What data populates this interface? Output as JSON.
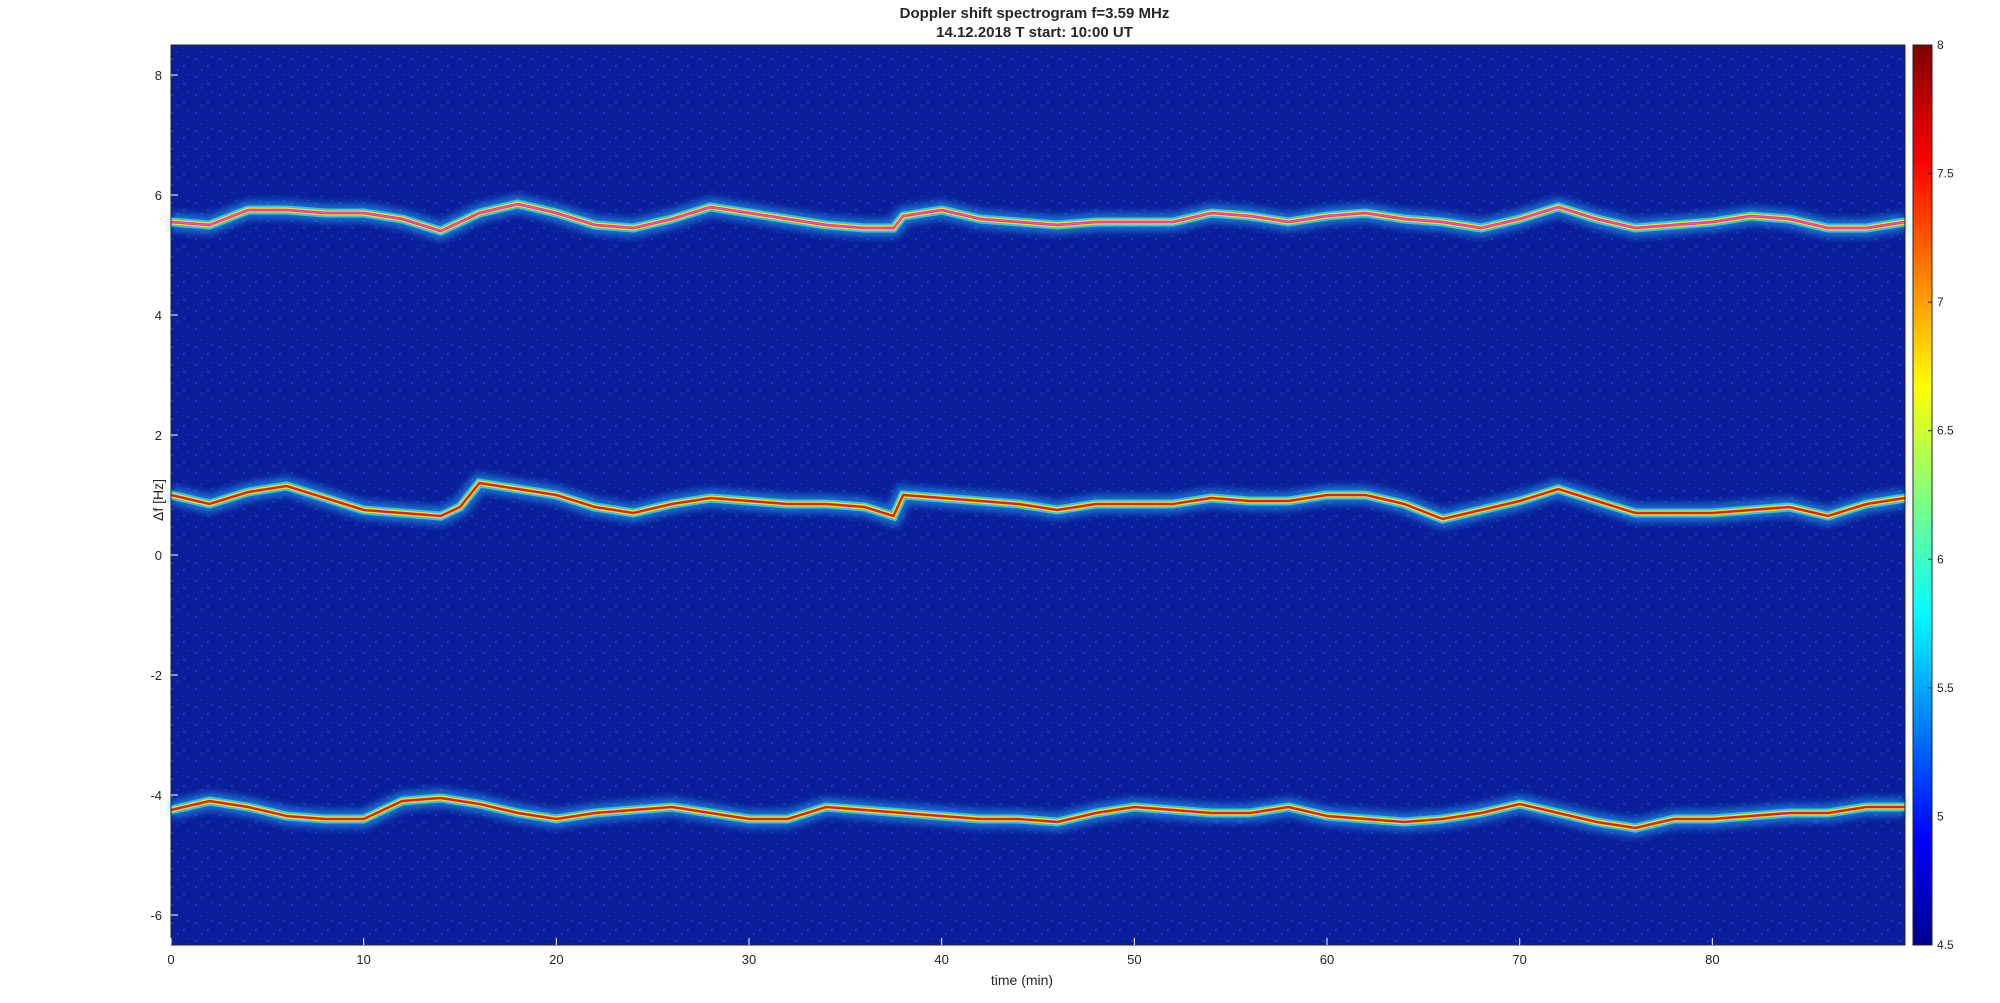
{
  "chart_data": {
    "type": "heatmap",
    "title": "Doppler shift spectrogram f=3.59 MHz",
    "subtitle": "14.12.2018   T start: 10:00 UT",
    "xlabel": "time (min)",
    "ylabel": "Δf [Hz]",
    "xlim": [
      0,
      90
    ],
    "ylim": [
      -6.5,
      8.5
    ],
    "xticks": [
      0,
      10,
      20,
      30,
      40,
      50,
      60,
      70,
      80
    ],
    "yticks": [
      -6,
      -4,
      -2,
      0,
      2,
      4,
      6,
      8
    ],
    "colorbar": {
      "range": [
        4.5,
        8
      ],
      "ticks": [
        4.5,
        5,
        5.5,
        6,
        6.5,
        7,
        7.5,
        8
      ],
      "colormap": "jet"
    },
    "background_color": "#0a1d9a",
    "series": [
      {
        "x": [
          0,
          2,
          4,
          6,
          8,
          10,
          12,
          14,
          16,
          18,
          20,
          22,
          24,
          26,
          28,
          30,
          32,
          34,
          36,
          37.5,
          38,
          40,
          42,
          44,
          46,
          48,
          50,
          52,
          54,
          56,
          58,
          60,
          62,
          64,
          66,
          68,
          70,
          72,
          74,
          76,
          78,
          80,
          82,
          84,
          86,
          88,
          90
        ],
        "y": [
          5.55,
          5.5,
          5.75,
          5.75,
          5.7,
          5.7,
          5.6,
          5.4,
          5.7,
          5.85,
          5.7,
          5.5,
          5.45,
          5.6,
          5.8,
          5.7,
          5.6,
          5.5,
          5.45,
          5.45,
          5.65,
          5.75,
          5.6,
          5.55,
          5.5,
          5.55,
          5.55,
          5.55,
          5.7,
          5.65,
          5.55,
          5.65,
          5.7,
          5.6,
          5.55,
          5.45,
          5.6,
          5.8,
          5.6,
          5.45,
          5.5,
          5.55,
          5.65,
          5.6,
          5.45,
          5.45,
          5.55
        ]
      },
      {
        "x": [
          0,
          2,
          4,
          6,
          8,
          10,
          12,
          14,
          15,
          16,
          18,
          20,
          22,
          24,
          26,
          28,
          30,
          32,
          34,
          36,
          37.5,
          38,
          40,
          42,
          44,
          46,
          48,
          50,
          52,
          54,
          56,
          58,
          60,
          62,
          64,
          66,
          68,
          70,
          72,
          74,
          76,
          78,
          80,
          82,
          84,
          86,
          88,
          90
        ],
        "y": [
          1.0,
          0.85,
          1.05,
          1.15,
          0.95,
          0.75,
          0.7,
          0.65,
          0.8,
          1.2,
          1.1,
          1.0,
          0.8,
          0.7,
          0.85,
          0.95,
          0.9,
          0.85,
          0.85,
          0.8,
          0.65,
          1.0,
          0.95,
          0.9,
          0.85,
          0.75,
          0.85,
          0.85,
          0.85,
          0.95,
          0.9,
          0.9,
          1.0,
          1.0,
          0.85,
          0.6,
          0.75,
          0.9,
          1.1,
          0.9,
          0.7,
          0.7,
          0.7,
          0.75,
          0.8,
          0.65,
          0.85,
          0.95
        ]
      },
      {
        "x": [
          0,
          2,
          4,
          6,
          8,
          10,
          12,
          14,
          16,
          18,
          20,
          22,
          24,
          26,
          28,
          30,
          32,
          34,
          36,
          38,
          40,
          42,
          44,
          46,
          48,
          50,
          52,
          54,
          56,
          58,
          60,
          62,
          64,
          66,
          68,
          70,
          72,
          74,
          76,
          78,
          80,
          82,
          84,
          86,
          88,
          90
        ],
        "y": [
          -4.25,
          -4.1,
          -4.2,
          -4.35,
          -4.4,
          -4.4,
          -4.1,
          -4.05,
          -4.15,
          -4.3,
          -4.4,
          -4.3,
          -4.25,
          -4.2,
          -4.3,
          -4.4,
          -4.4,
          -4.2,
          -4.25,
          -4.3,
          -4.35,
          -4.4,
          -4.4,
          -4.45,
          -4.3,
          -4.2,
          -4.25,
          -4.3,
          -4.3,
          -4.2,
          -4.35,
          -4.4,
          -4.45,
          -4.4,
          -4.3,
          -4.15,
          -4.3,
          -4.45,
          -4.55,
          -4.4,
          -4.4,
          -4.35,
          -4.3,
          -4.3,
          -4.2,
          -4.2
        ]
      }
    ]
  }
}
